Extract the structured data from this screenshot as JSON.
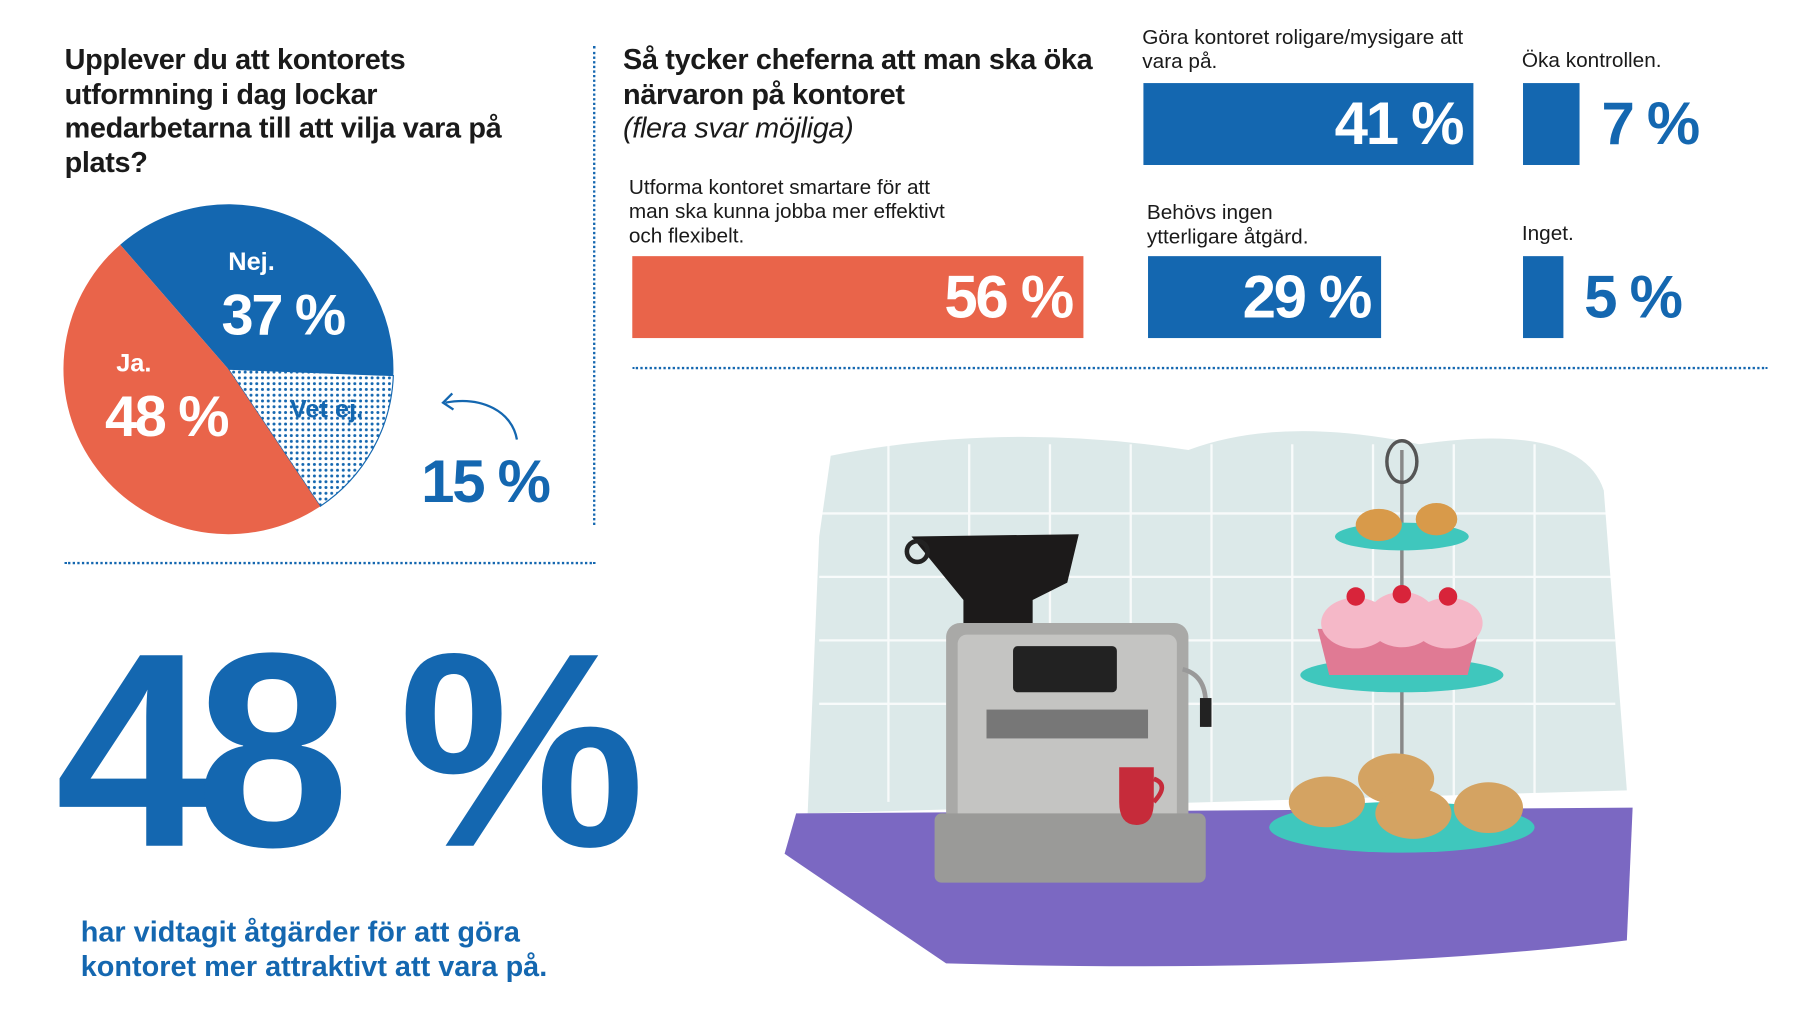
{
  "left": {
    "question": "Upplever du att kontorets utformning i dag lockar medarbetarna till att vilja vara på plats?",
    "big_stat": "48 %",
    "big_stat_caption": "har vidtagit åtgärder för att göra kontoret mer attraktivt att vara på."
  },
  "right": {
    "title": "Så tycker cheferna att man ska öka närvaron på kontoret",
    "subtitle": "(flera svar möjliga)"
  },
  "colors": {
    "blue": "#1467b0",
    "orange": "#e9644a",
    "dots": "#1467b0"
  },
  "chart_data": [
    {
      "type": "pie",
      "title": "Upplever du att kontorets utformning i dag lockar medarbetarna till att vilja vara på plats?",
      "slices": [
        {
          "label": "Nej.",
          "value": 37,
          "text": "37 %",
          "color": "#1467b0"
        },
        {
          "label": "Vet ej.",
          "value": 15,
          "text": "15 %",
          "color": "dotted"
        },
        {
          "label": "Ja.",
          "value": 48,
          "text": "48 %",
          "color": "#e9644a"
        }
      ]
    },
    {
      "type": "bar",
      "title": "Så tycker cheferna att man ska öka närvaron på kontoret",
      "unit": "%",
      "categories": [
        "Utforma kontoret smartare för att man ska kunna jobba mer effektivt och flexibelt.",
        "Göra kontoret roligare/mysigare att vara på.",
        "Behövs ingen ytterligare åtgärd.",
        "Öka kontrollen.",
        "Inget."
      ],
      "values": [
        56,
        41,
        29,
        7,
        5
      ],
      "labels": [
        "56 %",
        "41 %",
        "29 %",
        "7 %",
        "5 %"
      ]
    }
  ]
}
